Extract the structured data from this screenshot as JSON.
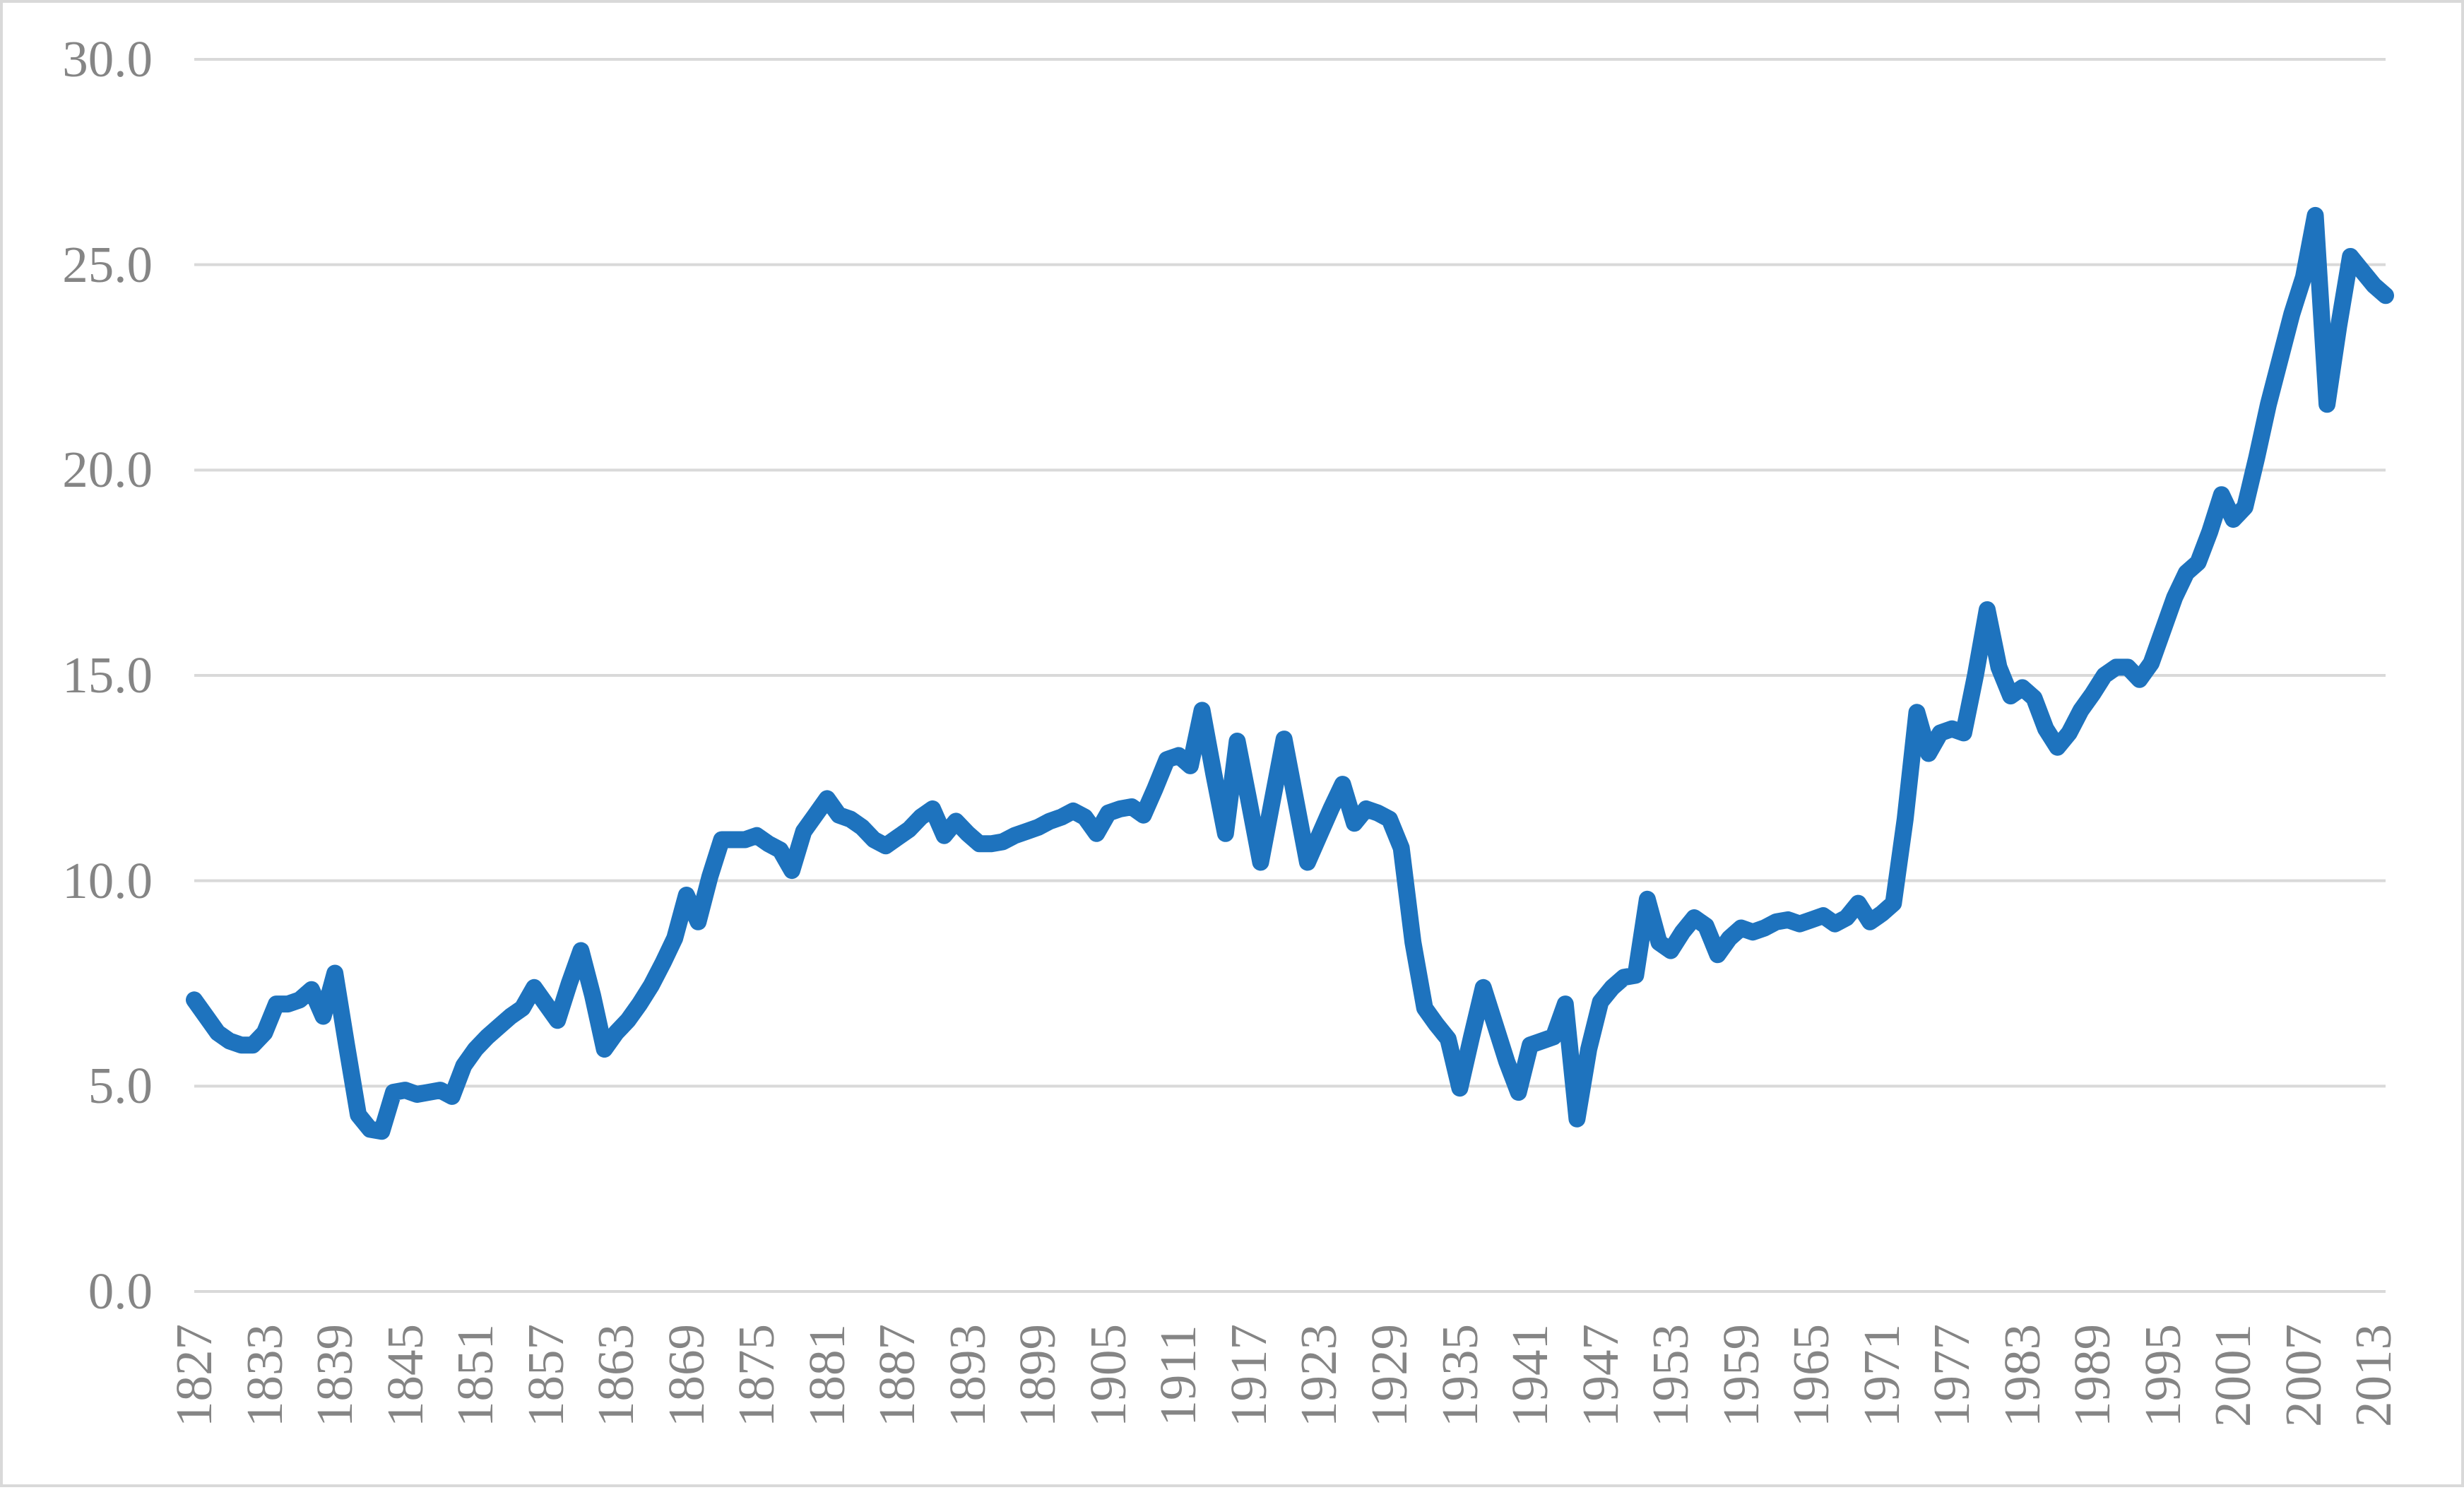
{
  "chart_data": {
    "type": "line",
    "title": "",
    "xlabel": "",
    "ylabel": "",
    "xlim": [
      1827,
      2014
    ],
    "ylim": [
      0,
      30
    ],
    "grid": "horizontal",
    "legend": "none",
    "y_ticks": [
      0,
      5,
      10,
      15,
      20,
      25,
      30
    ],
    "y_tick_labels": [
      "0.0",
      "5.0",
      "10.0",
      "15.0",
      "20.0",
      "25.0",
      "30.0"
    ],
    "x_tick_labels": [
      1827,
      1833,
      1839,
      1845,
      1851,
      1857,
      1863,
      1869,
      1875,
      1881,
      1887,
      1893,
      1899,
      1905,
      1911,
      1917,
      1923,
      1929,
      1935,
      1941,
      1947,
      1953,
      1959,
      1965,
      1971,
      1977,
      1983,
      1989,
      1995,
      2001,
      2007,
      2013
    ],
    "series": [
      {
        "name": "series-1",
        "color": "#1E73BE",
        "x_start": 1827,
        "x_step": 1,
        "values": [
          7.1,
          6.7,
          6.3,
          6.1,
          6.0,
          6.0,
          6.3,
          7.0,
          7.0,
          7.1,
          7.35,
          6.7,
          7.75,
          6.0,
          4.3,
          3.95,
          3.9,
          4.85,
          4.9,
          4.8,
          4.85,
          4.9,
          4.75,
          5.5,
          5.9,
          6.2,
          6.45,
          6.7,
          6.9,
          7.4,
          7.0,
          6.6,
          7.5,
          8.3,
          7.2,
          5.9,
          6.3,
          6.6,
          7.0,
          7.45,
          8.0,
          8.6,
          9.65,
          9.0,
          10.1,
          11.0,
          11.0,
          11.0,
          11.1,
          10.9,
          10.75,
          10.25,
          11.2,
          11.6,
          12.0,
          11.6,
          11.5,
          11.3,
          11.0,
          10.85,
          11.05,
          11.25,
          11.55,
          11.75,
          11.1,
          11.45,
          11.15,
          10.9,
          10.9,
          10.95,
          11.1,
          11.2,
          11.3,
          11.45,
          11.55,
          11.7,
          11.55,
          11.15,
          11.65,
          11.75,
          11.8,
          11.6,
          12.25,
          12.95,
          13.05,
          12.8,
          14.15,
          12.6,
          11.15,
          13.4,
          11.95,
          10.45,
          11.95,
          13.45,
          11.95,
          10.45,
          11.1,
          11.75,
          12.35,
          11.4,
          11.75,
          11.65,
          11.5,
          10.8,
          8.5,
          6.9,
          6.5,
          6.15,
          4.95,
          6.2,
          7.4,
          6.5,
          5.6,
          4.85,
          6.0,
          6.1,
          6.2,
          7.0,
          4.2,
          5.9,
          7.05,
          7.4,
          7.65,
          7.7,
          9.55,
          8.5,
          8.3,
          8.75,
          9.1,
          8.9,
          8.2,
          8.6,
          8.85,
          8.75,
          8.85,
          9.0,
          9.05,
          8.95,
          9.05,
          9.15,
          8.95,
          9.1,
          9.45,
          9.0,
          9.2,
          9.45,
          11.5,
          14.1,
          13.1,
          13.6,
          13.7,
          13.6,
          15.0,
          16.6,
          15.2,
          14.5,
          14.7,
          14.45,
          13.7,
          13.25,
          13.6,
          14.15,
          14.55,
          15.0,
          15.2,
          15.2,
          14.9,
          15.3,
          16.1,
          16.9,
          17.5,
          17.75,
          18.5,
          19.4,
          18.8,
          19.1,
          20.3,
          21.6,
          22.7,
          23.8,
          24.7,
          26.2,
          21.6,
          23.5,
          25.2,
          24.85,
          24.5,
          24.25
        ]
      }
    ],
    "colors": {
      "line": "#1E73BE",
      "gridline": "#D9D9D9",
      "tick_label": "#858585",
      "frame_border": "#D9D9D9",
      "background": "#FFFFFF"
    }
  }
}
